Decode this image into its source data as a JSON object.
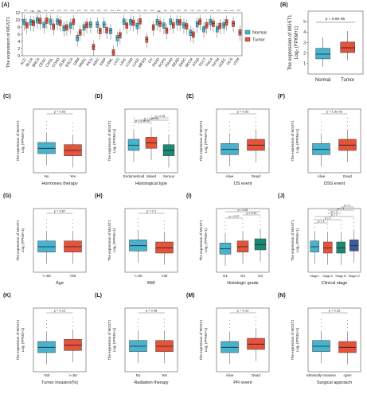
{
  "colors": {
    "normal": "#48b3cf",
    "tumor": "#e6533b"
  },
  "chart_data": [
    {
      "panel": "(A)",
      "type": "box",
      "ylabel": "The expression of MGST1",
      "ylim": [
        0,
        12
      ],
      "yticks": [
        "0",
        "2",
        "4",
        "6",
        "8",
        "10",
        "12"
      ],
      "legend": {
        "position": "top-right",
        "entries": [
          "Normal",
          "Tumor"
        ]
      },
      "significance": [
        "***",
        "ns",
        "ns",
        "***",
        "***",
        "***",
        "***",
        "***",
        "***",
        "***",
        "***",
        "***",
        "***",
        "***",
        "***",
        "***",
        "***",
        "***",
        "***",
        "***",
        "ns",
        "***",
        "***",
        "***",
        "***",
        "***",
        "***",
        "***",
        "***",
        "***",
        "***",
        "***",
        "***"
      ],
      "categories": [
        "ACC",
        "BLCA",
        "BRCA",
        "CESC",
        "CHOL",
        "COAD",
        "DLBC",
        "ESCA",
        "GBM",
        "HNSC",
        "KICH",
        "KIRC",
        "KIRP",
        "LAML",
        "LGG",
        "LIHC",
        "LUAD",
        "LUSC",
        "MESO",
        "OV",
        "PAAD",
        "PCPG",
        "PRAD",
        "READ",
        "SARC",
        "SKCM",
        "STAD",
        "TGCT",
        "THCA",
        "THYM",
        "UCEC",
        "UCS",
        "UVM"
      ],
      "series": [
        {
          "name": "Normal",
          "medians": [
            9.5,
            9.4,
            10.0,
            8.7,
            9.6,
            9.6,
            7.8,
            8.5,
            5.0,
            8.0,
            8.8,
            8.8,
            8.8,
            7.0,
            5.0,
            9.6,
            9.5,
            8.4,
            null,
            null,
            9.5,
            8.5,
            9.6,
            9.5,
            8.6,
            6.5,
            8.9,
            7.5,
            9.5,
            7.5,
            8.6,
            null,
            null
          ]
        },
        {
          "name": "Tumor",
          "medians": [
            8.6,
            9.2,
            9.8,
            9.9,
            8.2,
            9.3,
            8.0,
            9.6,
            6.6,
            8.7,
            2.5,
            7.0,
            7.2,
            1.0,
            5.8,
            8.5,
            9.3,
            9.7,
            4.6,
            8.0,
            9.0,
            7.1,
            8.6,
            9.4,
            8.3,
            6.0,
            9.6,
            8.6,
            9.0,
            8.4,
            9.4,
            9.0,
            6.6
          ]
        }
      ]
    },
    {
      "panel": "(B)",
      "type": "box",
      "ylabel": "The expression of MGST1",
      "ylabel2": "Log₂ (FPKM+1)",
      "annotation": "p = 6.6e-05",
      "categories": [
        "Normal",
        "Tumor"
      ],
      "ylim": [
        0,
        6
      ],
      "yticks": [
        "1",
        "2",
        "3",
        "4",
        "5"
      ],
      "medians": [
        1.9,
        2.5
      ]
    },
    {
      "panel": "(C)",
      "type": "box",
      "xlabel": "Hormones therapy",
      "categories": [
        "No",
        "Yes"
      ],
      "annotation": "p = 0.03",
      "medians": [
        2.3,
        2.1
      ]
    },
    {
      "panel": "(D)",
      "type": "box",
      "xlabel": "Histological type",
      "categories": [
        "Endometrioid",
        "Mixed",
        "Serous"
      ],
      "annotations": [
        "p = 2.3e-03",
        "p = 1.8e-03",
        "p = 0.16"
      ],
      "medians": [
        2.6,
        2.8,
        2.1
      ]
    },
    {
      "panel": "(E)",
      "type": "box",
      "xlabel": "OS event",
      "categories": [
        "Alive",
        "Dead"
      ],
      "annotation": "p = 0.03",
      "medians": [
        2.2,
        2.6
      ]
    },
    {
      "panel": "(F)",
      "type": "box",
      "xlabel": "DSS event",
      "categories": [
        "Alive",
        "Dead"
      ],
      "annotation": "p = 1.9e-03",
      "medians": [
        2.2,
        2.6
      ]
    },
    {
      "panel": "(G)",
      "type": "box",
      "xlabel": "Age",
      "categories": [
        "<=60",
        ">60"
      ],
      "annotation": "p = 0.67",
      "medians": [
        2.4,
        2.4
      ]
    },
    {
      "panel": "(H)",
      "type": "box",
      "xlabel": "BMI",
      "categories": [
        "<=30",
        ">30"
      ],
      "annotation": "p = 0.1",
      "medians": [
        2.5,
        2.3
      ]
    },
    {
      "panel": "(I)",
      "type": "box",
      "xlabel": "Histologic grade",
      "categories": [
        "G1",
        "G2",
        "G3"
      ],
      "annotations": [
        "p = 0.07",
        "p = 0.12",
        "p = 0.02"
      ],
      "medians": [
        2.2,
        2.4,
        2.6
      ]
    },
    {
      "panel": "(J)",
      "type": "box",
      "xlabel": "Clinical stage",
      "categories": [
        "Stage I",
        "Stage II",
        "Stage III",
        "Stage IV"
      ],
      "annotations": [
        "p = 1",
        "p = 1",
        "p = 1",
        "p = 1",
        "p = 1",
        "p = 1"
      ],
      "medians": [
        2.4,
        2.3,
        2.3,
        2.5
      ]
    },
    {
      "panel": "(K)",
      "type": "box",
      "xlabel": "Tumor invasion(%)",
      "categories": [
        "<50",
        ">=50"
      ],
      "annotation": "p = 0.12",
      "medians": [
        2.3,
        2.5
      ]
    },
    {
      "panel": "(L)",
      "type": "box",
      "xlabel": "Radiation therapy",
      "categories": [
        "No",
        "Yes"
      ],
      "annotation": "p = 0.48",
      "medians": [
        2.4,
        2.4
      ]
    },
    {
      "panel": "(M)",
      "type": "box",
      "xlabel": "PFI event",
      "categories": [
        "Alive",
        "Dead"
      ],
      "annotation": "p = 0.13",
      "medians": [
        2.3,
        2.6
      ]
    },
    {
      "panel": "(N)",
      "type": "box",
      "xlabel": "Surgical approach",
      "categories": [
        "Minimally Invasive",
        "open"
      ],
      "annotation": "p = 0.25",
      "medians": [
        2.4,
        2.3
      ]
    }
  ]
}
